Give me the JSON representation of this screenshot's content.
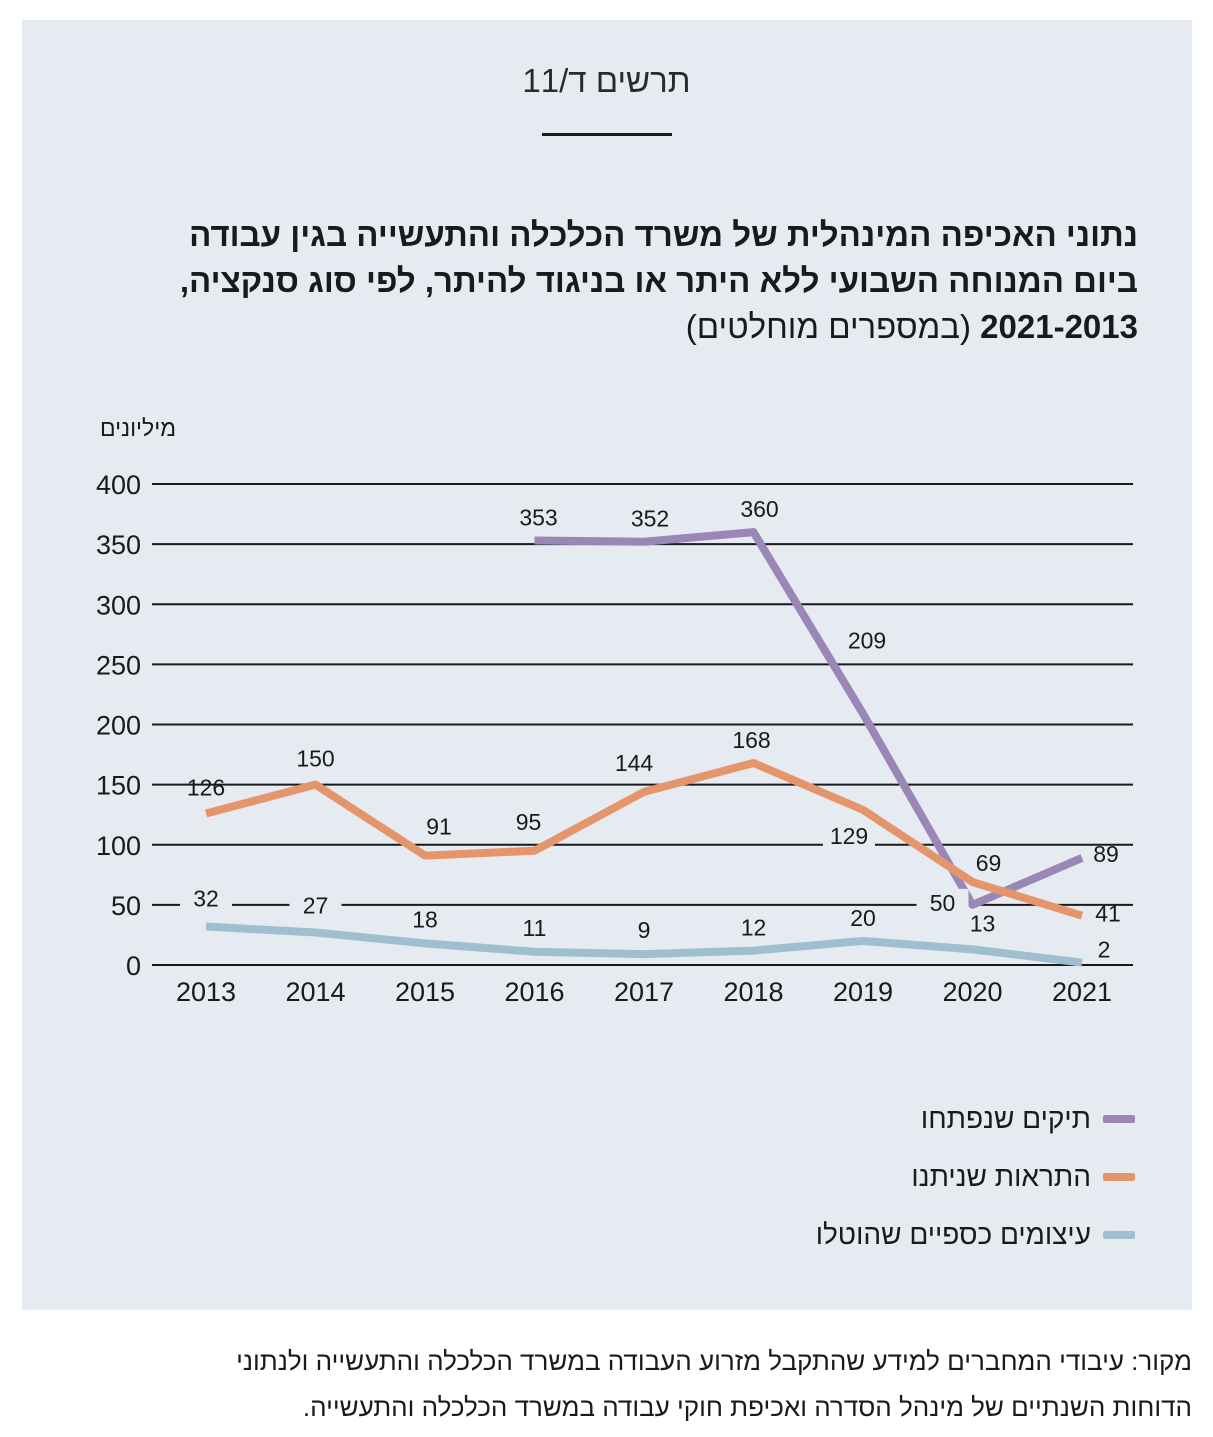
{
  "figure_label": "תרשים ד/11",
  "title": {
    "line1": "נתוני האכיפה המינהלית של משרד הכלכלה והתעשייה בגין עבודה",
    "line2": "ביום המנוחה השבועי ללא היתר או בניגוד להיתר, לפי סוג סנקציה,",
    "line3_bold": "2021-2013",
    "line3_normal": "(במספרים מוחלטים)"
  },
  "source": {
    "line1": "מקור: עיבודי המחברים למידע שהתקבל מזרוע העבודה במשרד הכלכלה והתעשייה ולנתוני",
    "line2": "הדוחות השנתיים של מינהל הסדרה ואכיפת חוקי עבודה במשרד הכלכלה והתעשייה."
  },
  "colors": {
    "background_panel": "#e6ebf1",
    "gridline": "#1a1a1a",
    "purple": "#9a87b5",
    "orange": "#e5956c",
    "blue": "#9fbfd0"
  },
  "chart_data": {
    "type": "line",
    "ylabel": "מיליונים",
    "ylim": [
      0,
      400
    ],
    "yticks": [
      0,
      50,
      100,
      150,
      200,
      250,
      300,
      350,
      400
    ],
    "categories": [
      "2013",
      "2014",
      "2015",
      "2016",
      "2017",
      "2018",
      "2019",
      "2020",
      "2021"
    ],
    "grid": true,
    "legend_position": "bottom-right",
    "series": [
      {
        "name": "תיקים שנפתחו",
        "color": "#9a87b5",
        "values": [
          null,
          null,
          null,
          353,
          352,
          360,
          209,
          50,
          89
        ]
      },
      {
        "name": "התראות שניתנו",
        "color": "#e5956c",
        "values": [
          126,
          150,
          91,
          95,
          144,
          168,
          129,
          69,
          41
        ]
      },
      {
        "name": "עיצומים כספיים שהוטלו",
        "color": "#9fbfd0",
        "values": [
          32,
          27,
          18,
          11,
          9,
          12,
          20,
          13,
          2
        ]
      }
    ]
  }
}
